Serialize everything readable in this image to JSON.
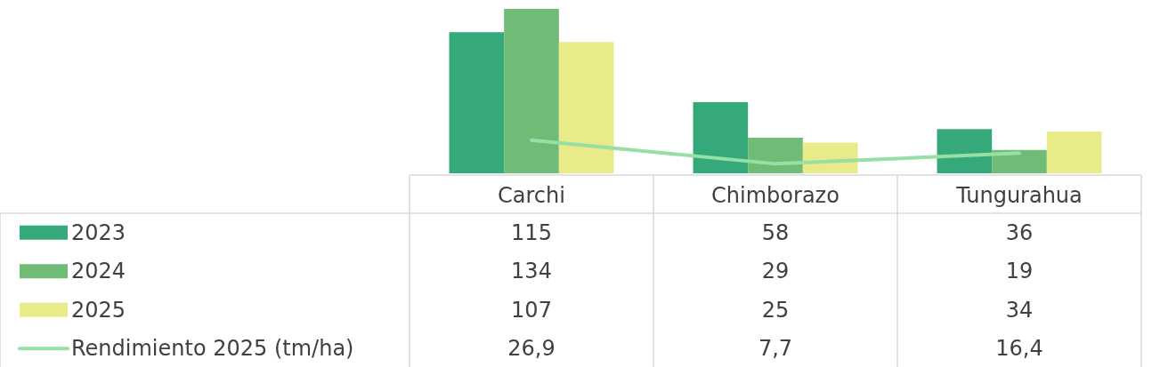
{
  "chart_data": {
    "type": "bar",
    "categories": [
      "Carchi",
      "Chimborazo",
      "Tungurahua"
    ],
    "series": [
      {
        "name": "2023",
        "color": "#35a979",
        "values": [
          115,
          58,
          36
        ],
        "value_labels": [
          "115",
          "58",
          "36"
        ]
      },
      {
        "name": "2024",
        "color": "#70bb76",
        "values": [
          134,
          29,
          19
        ],
        "value_labels": [
          "134",
          "29",
          "19"
        ]
      },
      {
        "name": "2025",
        "color": "#e9eb8a",
        "values": [
          107,
          25,
          34
        ],
        "value_labels": [
          "107",
          "25",
          "34"
        ]
      },
      {
        "name": "Rendimiento 2025 (tm/ha)",
        "type": "line",
        "color": "#97dfa4",
        "values": [
          26.9,
          7.7,
          16.4
        ],
        "value_labels": [
          "26,9",
          "7,7",
          "16,4"
        ]
      }
    ],
    "legend": "bottom",
    "marker": "none",
    "line_style": "solid"
  }
}
